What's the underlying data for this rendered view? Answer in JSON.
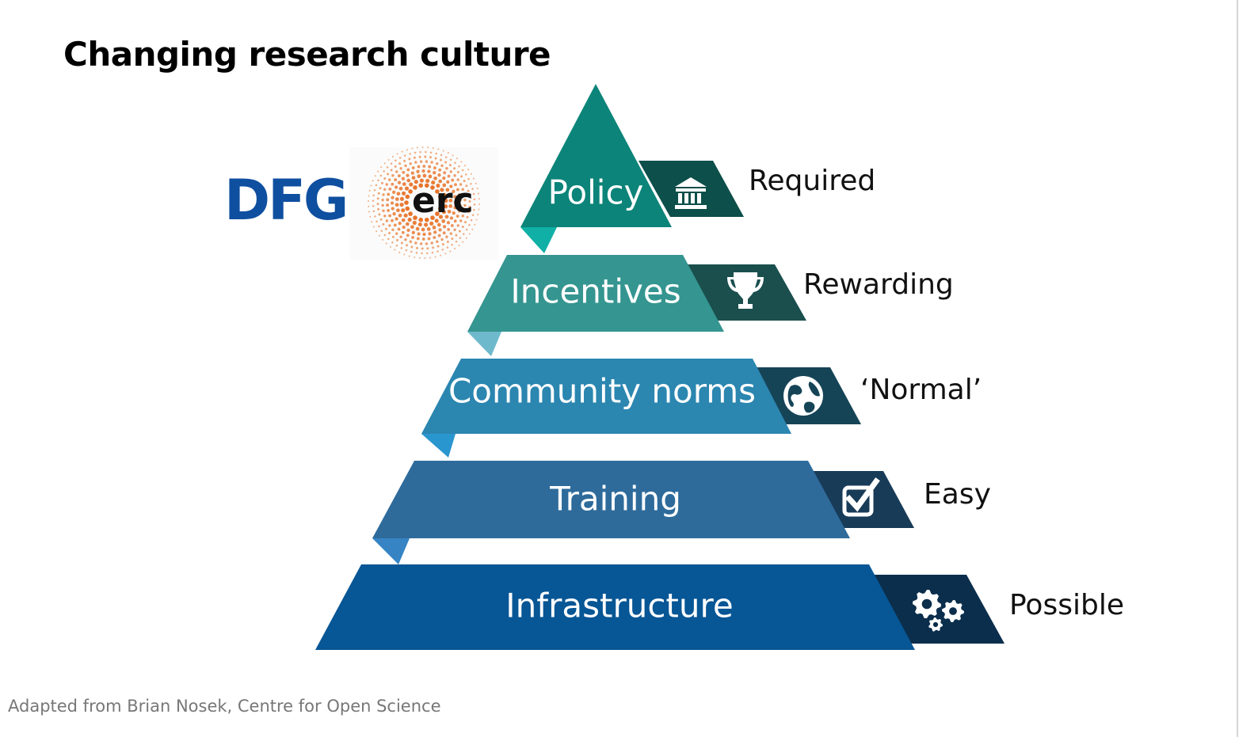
{
  "title": "Changing research culture",
  "footer": "Adapted from Brian Nosek, Centre for Open Science",
  "logos": [
    {
      "name": "dfg-logo",
      "text": "DFG",
      "color": "#0f4fa0"
    },
    {
      "name": "erc-logo",
      "text": "erc",
      "color": "#e8742a"
    }
  ],
  "tiers": [
    {
      "label": "Policy",
      "outcome": "Required",
      "icon": "institution-icon",
      "color": "#0c8479",
      "tab": "#0d4f4a",
      "fold": "#10b0a6"
    },
    {
      "label": "Incentives",
      "outcome": "Rewarding",
      "icon": "trophy-icon",
      "color": "#359590",
      "tab": "#1a4f4e",
      "fold": "#6fb9cc"
    },
    {
      "label": "Community norms",
      "outcome": "‘Normal’",
      "icon": "globe-icon",
      "color": "#2b86b0",
      "tab": "#164457",
      "fold": "#2a96cf"
    },
    {
      "label": "Training",
      "outcome": "Easy",
      "icon": "checkbox-icon",
      "color": "#2e6b9b",
      "tab": "#183b58",
      "fold": "#3684c4"
    },
    {
      "label": "Infrastructure",
      "outcome": "Possible",
      "icon": "gears-icon",
      "color": "#075695",
      "tab": "#0b2e4c",
      "fold": "#0a4f8c"
    }
  ]
}
